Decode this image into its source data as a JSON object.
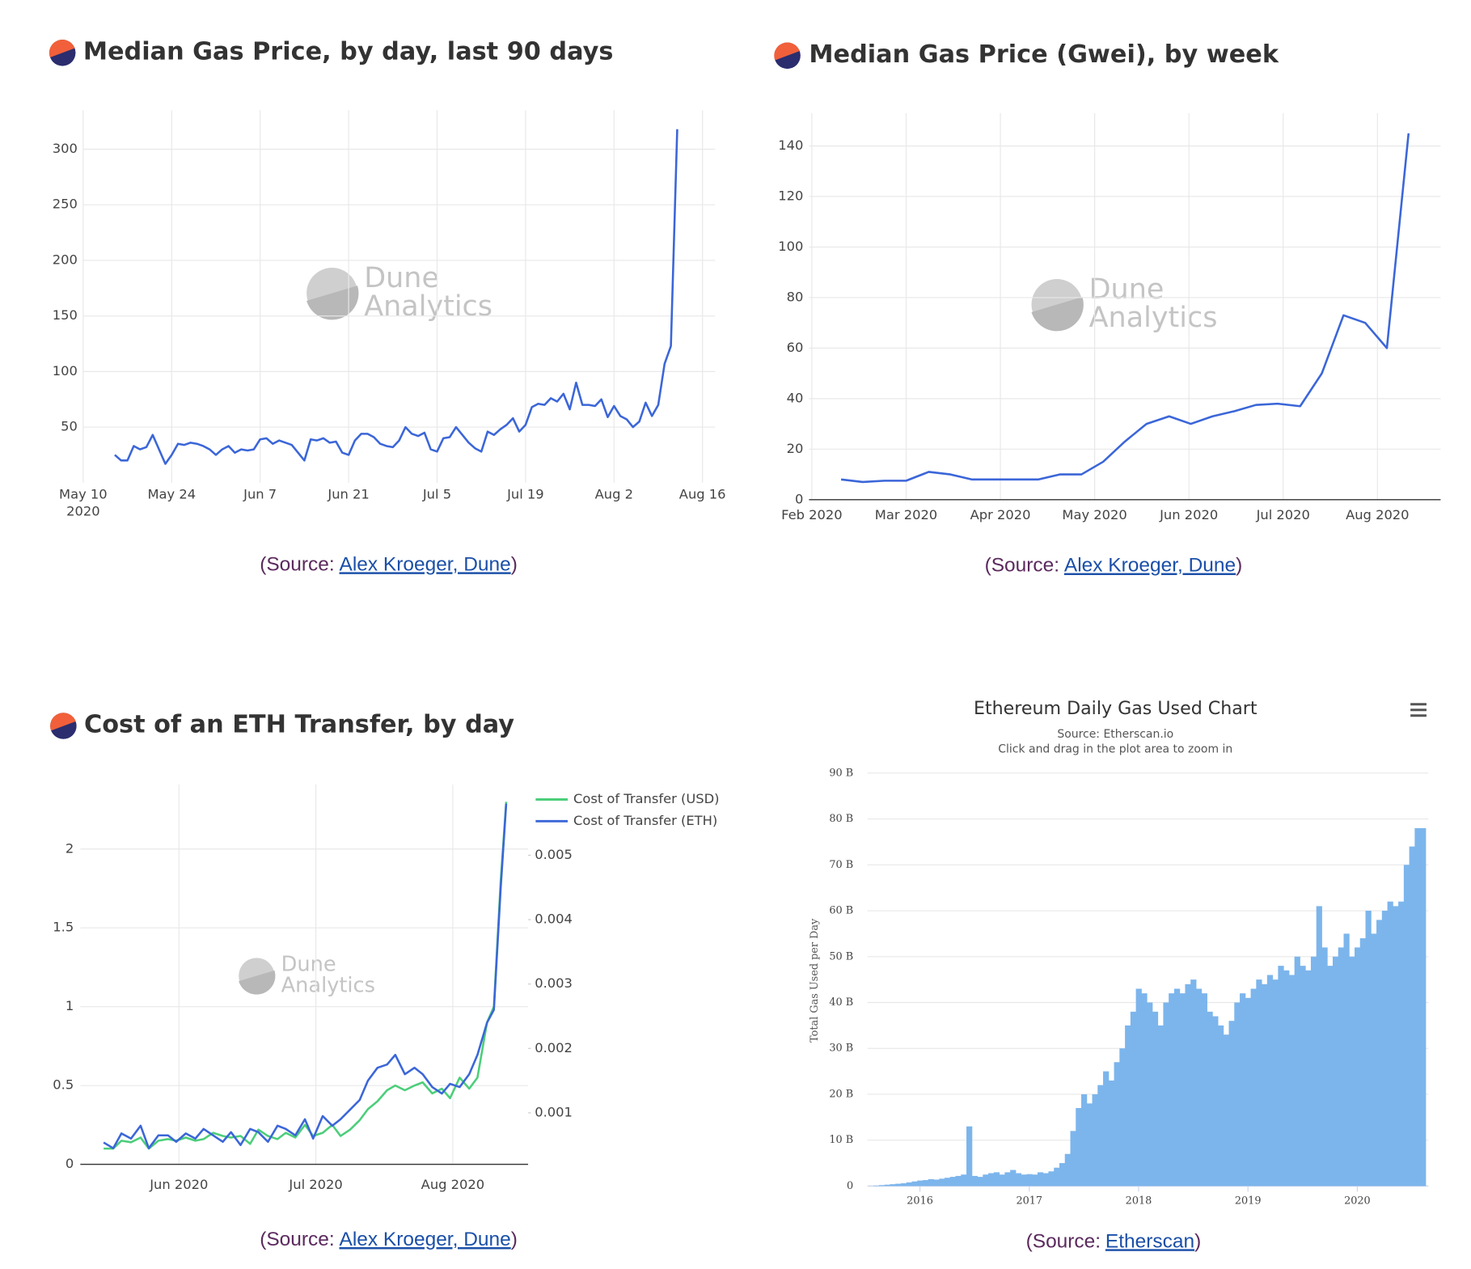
{
  "chart_data": [
    {
      "type": "line",
      "title": "Median Gas Price, by day, last 90 days",
      "color": "#3b66d8",
      "grid": true,
      "watermark": [
        "Dune",
        "Analytics"
      ],
      "x_year_label": "2020",
      "x": [
        5,
        6,
        7,
        8,
        9,
        10,
        11,
        12,
        13,
        14,
        15,
        16,
        17,
        18,
        19,
        20,
        21,
        22,
        23,
        24,
        25,
        26,
        27,
        28,
        29,
        30,
        31,
        32,
        33,
        34,
        35,
        36,
        37,
        38,
        39,
        40,
        41,
        42,
        43,
        44,
        45,
        46,
        47,
        48,
        49,
        50,
        51,
        52,
        53,
        54,
        55,
        56,
        57,
        58,
        59,
        60,
        61,
        62,
        63,
        64,
        65,
        66,
        67,
        68,
        69,
        70,
        71,
        72,
        73,
        74,
        75,
        76,
        77,
        78,
        79,
        80,
        81,
        82,
        83,
        84,
        85,
        86,
        87,
        88,
        89,
        90,
        91,
        92,
        93,
        94
      ],
      "values": [
        25,
        20,
        20,
        33,
        30,
        32,
        43,
        30,
        17,
        25,
        35,
        34,
        36,
        35,
        33,
        30,
        25,
        30,
        33,
        27,
        30,
        29,
        30,
        39,
        40,
        35,
        38,
        36,
        34,
        27,
        20,
        39,
        38,
        40,
        36,
        37,
        27,
        25,
        38,
        44,
        44,
        41,
        35,
        33,
        32,
        38,
        50,
        44,
        42,
        45,
        30,
        28,
        40,
        41,
        50,
        43,
        36,
        31,
        28,
        46,
        43,
        48,
        52,
        58,
        46,
        52,
        68,
        71,
        70,
        76,
        73,
        80,
        66,
        90,
        70,
        70,
        69,
        75,
        59,
        69,
        60,
        57,
        50,
        55,
        72,
        60,
        70,
        107,
        123,
        318
      ],
      "xlim": [
        -4,
        100
      ],
      "xticks": [
        {
          "value": 0,
          "label": "May 10"
        },
        {
          "value": 14,
          "label": "May 24"
        },
        {
          "value": 28,
          "label": "Jun 7"
        },
        {
          "value": 42,
          "label": "Jun 21"
        },
        {
          "value": 56,
          "label": "Jul 5"
        },
        {
          "value": 70,
          "label": "Jul 19"
        },
        {
          "value": 84,
          "label": "Aug 2"
        },
        {
          "value": 98,
          "label": "Aug 16"
        }
      ],
      "ylim": [
        0,
        335
      ],
      "yticks": [
        50,
        100,
        150,
        200,
        250,
        300
      ]
    },
    {
      "type": "line",
      "title": "Median Gas Price (Gwei), by week",
      "color": "#3b66d8",
      "grid": true,
      "watermark": [
        "Dune",
        "Analytics"
      ],
      "x": [
        1.31,
        1.54,
        1.77,
        2.0,
        2.24,
        2.47,
        2.7,
        2.93,
        3.16,
        3.4,
        3.63,
        3.86,
        4.09,
        4.32,
        4.55,
        4.79,
        5.02,
        5.25,
        5.48,
        5.71,
        5.94,
        6.18,
        6.41,
        6.64,
        6.87,
        7.1,
        7.33
      ],
      "values": [
        8,
        7,
        7.5,
        7.5,
        11,
        10,
        8,
        8,
        8,
        8,
        10,
        10,
        15,
        23,
        30,
        33,
        30,
        33,
        35,
        37.5,
        38,
        37,
        50,
        73,
        70,
        60,
        145
      ],
      "xlim": [
        0.94,
        7.67
      ],
      "xticks": [
        {
          "value": 1,
          "label": "Feb 2020"
        },
        {
          "value": 2,
          "label": "Mar 2020"
        },
        {
          "value": 3,
          "label": "Apr 2020"
        },
        {
          "value": 4,
          "label": "May 2020"
        },
        {
          "value": 5,
          "label": "Jun 2020"
        },
        {
          "value": 6,
          "label": "Jul 2020"
        },
        {
          "value": 7,
          "label": "Aug 2020"
        }
      ],
      "ylim": [
        0,
        153
      ],
      "yticks": [
        0,
        20,
        40,
        60,
        80,
        100,
        120,
        140
      ]
    },
    {
      "type": "line",
      "title": "Cost of an ETH Transfer, by day",
      "grid": true,
      "legend": "top-right",
      "watermark": [
        "Dune",
        "Analytics"
      ],
      "x": [
        5.45,
        5.52,
        5.58,
        5.65,
        5.72,
        5.78,
        5.85,
        5.92,
        5.98,
        6.05,
        6.12,
        6.18,
        6.25,
        6.32,
        6.38,
        6.45,
        6.52,
        6.58,
        6.65,
        6.72,
        6.78,
        6.85,
        6.92,
        6.98,
        7.05,
        7.12,
        7.18,
        7.25,
        7.32,
        7.38,
        7.45,
        7.52,
        7.58,
        7.65,
        7.72,
        7.78,
        7.85,
        7.92,
        7.98,
        8.05,
        8.12,
        8.18,
        8.25,
        8.3,
        8.35,
        8.39
      ],
      "series": [
        {
          "name": "Cost of Transfer (USD)",
          "color": "#4cce7a",
          "values": [
            0.1,
            0.1,
            0.15,
            0.14,
            0.17,
            0.1,
            0.15,
            0.16,
            0.15,
            0.17,
            0.15,
            0.16,
            0.2,
            0.18,
            0.17,
            0.18,
            0.13,
            0.22,
            0.18,
            0.16,
            0.2,
            0.17,
            0.25,
            0.18,
            0.2,
            0.25,
            0.18,
            0.22,
            0.28,
            0.35,
            0.4,
            0.47,
            0.5,
            0.47,
            0.5,
            0.52,
            0.45,
            0.48,
            0.42,
            0.55,
            0.48,
            0.55,
            0.9,
            1.0,
            1.8,
            2.3
          ]
        },
        {
          "name": "Cost of Transfer (ETH)",
          "color": "#3b66d8",
          "axis": "y2",
          "values": [
            0.00054,
            0.00045,
            0.00068,
            0.0006,
            0.0008,
            0.00045,
            0.00065,
            0.00065,
            0.00055,
            0.00068,
            0.0006,
            0.00075,
            0.00065,
            0.00055,
            0.0007,
            0.0005,
            0.00075,
            0.0007,
            0.00055,
            0.0008,
            0.00075,
            0.00065,
            0.0009,
            0.0006,
            0.00095,
            0.0008,
            0.0009,
            0.00105,
            0.0012,
            0.0015,
            0.0017,
            0.00175,
            0.0019,
            0.0016,
            0.0017,
            0.0016,
            0.0014,
            0.0013,
            0.00145,
            0.0014,
            0.0016,
            0.0019,
            0.0024,
            0.0026,
            0.0045,
            0.0058
          ]
        }
      ],
      "xlim": [
        5.28,
        8.55
      ],
      "xticks": [
        {
          "value": 6,
          "label": "Jun 2020"
        },
        {
          "value": 7,
          "label": "Jul 2020"
        },
        {
          "value": 8,
          "label": "Aug 2020"
        }
      ],
      "ylim": [
        0,
        2.41
      ],
      "yticks": [
        0,
        0.5,
        1,
        1.5,
        2
      ],
      "y2lim": [
        0.0002,
        0.0061
      ],
      "y2ticks": [
        0.001,
        0.002,
        0.003,
        0.004,
        0.005
      ]
    },
    {
      "type": "bar",
      "title": "Ethereum Daily Gas Used Chart",
      "subtitle": [
        "Source: Etherscan.io",
        "Click and drag in the plot area to zoom in"
      ],
      "y_label": "Total Gas Used per Day",
      "color": "#7cb5ec",
      "grid": "y",
      "x": [
        2015.6,
        2015.65,
        2015.7,
        2015.75,
        2015.8,
        2015.85,
        2015.9,
        2015.95,
        2016.0,
        2016.05,
        2016.1,
        2016.15,
        2016.2,
        2016.25,
        2016.3,
        2016.35,
        2016.4,
        2016.45,
        2016.5,
        2016.55,
        2016.6,
        2016.65,
        2016.7,
        2016.75,
        2016.8,
        2016.85,
        2016.9,
        2016.95,
        2017.0,
        2017.05,
        2017.1,
        2017.15,
        2017.2,
        2017.25,
        2017.3,
        2017.35,
        2017.4,
        2017.45,
        2017.5,
        2017.55,
        2017.6,
        2017.65,
        2017.7,
        2017.75,
        2017.8,
        2017.85,
        2017.9,
        2017.95,
        2018.0,
        2018.05,
        2018.1,
        2018.15,
        2018.2,
        2018.25,
        2018.3,
        2018.35,
        2018.4,
        2018.45,
        2018.5,
        2018.55,
        2018.6,
        2018.65,
        2018.7,
        2018.75,
        2018.8,
        2018.85,
        2018.9,
        2018.95,
        2019.0,
        2019.05,
        2019.1,
        2019.15,
        2019.2,
        2019.25,
        2019.3,
        2019.35,
        2019.4,
        2019.45,
        2019.5,
        2019.55,
        2019.6,
        2019.65,
        2019.7,
        2019.75,
        2019.8,
        2019.85,
        2019.9,
        2019.95,
        2020.0,
        2020.05,
        2020.1,
        2020.15,
        2020.2,
        2020.25,
        2020.3,
        2020.35,
        2020.4,
        2020.45,
        2020.5,
        2020.55,
        2020.6
      ],
      "values": [
        0.1,
        0.2,
        0.3,
        0.4,
        0.5,
        0.6,
        0.8,
        1,
        1.2,
        1.3,
        1.5,
        1.4,
        1.6,
        1.8,
        2,
        2.2,
        2.5,
        13,
        2.2,
        2,
        2.5,
        2.8,
        3,
        2.5,
        3,
        3.5,
        2.8,
        2.5,
        2.6,
        2.5,
        3,
        2.8,
        3.2,
        4,
        5,
        7,
        12,
        17,
        20,
        18,
        20,
        22,
        25,
        23,
        27,
        30,
        35,
        38,
        43,
        42,
        40,
        38,
        35,
        40,
        42,
        43,
        42,
        44,
        45,
        43,
        42,
        38,
        37,
        35,
        33,
        36,
        40,
        42,
        41,
        43,
        45,
        44,
        46,
        45,
        48,
        47,
        46,
        50,
        48,
        47,
        50,
        61,
        52,
        48,
        50,
        52,
        55,
        50,
        52,
        54,
        60,
        55,
        58,
        60,
        62,
        61,
        62,
        70,
        74,
        78,
        78
      ],
      "xlim": [
        2015.52,
        2020.65
      ],
      "xticks": [
        2016,
        2017,
        2018,
        2019,
        2020
      ],
      "ylim": [
        0,
        90
      ],
      "yticks": [
        0,
        {
          "value": 10,
          "label": "10 B"
        },
        {
          "value": 20,
          "label": "20 B"
        },
        {
          "value": 30,
          "label": "30 B"
        },
        {
          "value": 40,
          "label": "40 B"
        },
        {
          "value": 50,
          "label": "50 B"
        },
        {
          "value": 60,
          "label": "60 B"
        },
        {
          "value": 70,
          "label": "70 B"
        },
        {
          "value": 80,
          "label": "80 B"
        },
        {
          "value": 90,
          "label": "90 B"
        }
      ]
    }
  ],
  "captions": [
    {
      "prefix": "(Source:",
      "link": "Alex Kroeger, Dune",
      "suffix": ")"
    },
    {
      "prefix": "(Source:",
      "link": "Alex Kroeger, Dune",
      "suffix": ")"
    },
    {
      "prefix": "(Source:",
      "link": "Alex Kroeger, Dune",
      "suffix": ")"
    },
    {
      "prefix": "(Source:",
      "link": "Etherscan",
      "suffix": ")"
    }
  ]
}
